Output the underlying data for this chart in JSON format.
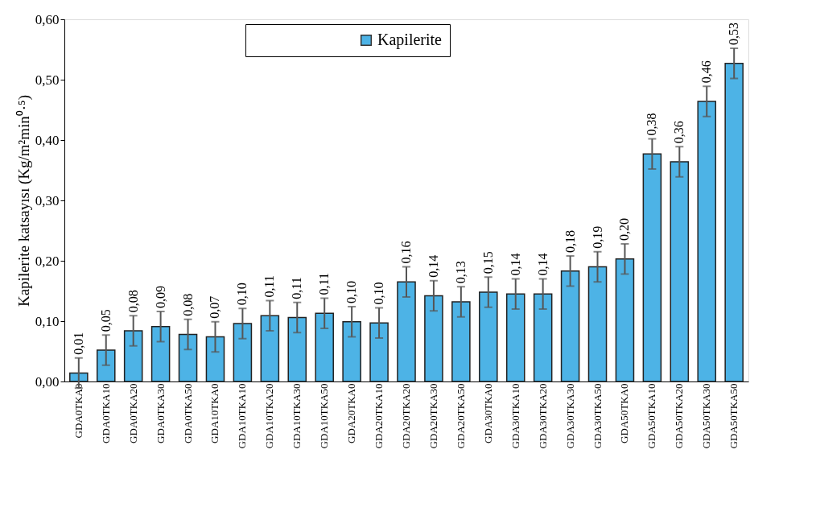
{
  "chart_data": {
    "type": "bar",
    "ylabel": "Kapilerite katsayısı (Kg/m²min⁰·⁵)",
    "categories": [
      "GDA0TKA0",
      "GDA0TKA10",
      "GDA0TKA20",
      "GDA0TKA30",
      "GDA0TKA50",
      "GDA10TKA0",
      "GDA10TKA10",
      "GDA10TKA20",
      "GDA10TKA30",
      "GDA10TKA50",
      "GDA20TKA0",
      "GDA20TKA10",
      "GDA20TKA20",
      "GDA20TKA30",
      "GDA20TKA50",
      "GDA30TKA0",
      "GDA30TKA10",
      "GDA30TKA20",
      "GDA30TKA30",
      "GDA30TKA50",
      "GDA50TKA0",
      "GDA50TKA10",
      "GDA50TKA20",
      "GDA50TKA30",
      "GDA50TKA50"
    ],
    "series": [
      {
        "name": "Kapilerite",
        "color": "#4db3e6",
        "values": [
          0.014,
          0.052,
          0.084,
          0.091,
          0.078,
          0.074,
          0.096,
          0.109,
          0.106,
          0.113,
          0.099,
          0.097,
          0.165,
          0.142,
          0.132,
          0.148,
          0.145,
          0.145,
          0.183,
          0.19,
          0.203,
          0.377,
          0.364,
          0.464,
          0.527
        ],
        "errors": [
          0.025,
          0.025,
          0.025,
          0.025,
          0.025,
          0.025,
          0.025,
          0.025,
          0.025,
          0.025,
          0.025,
          0.025,
          0.025,
          0.025,
          0.025,
          0.025,
          0.025,
          0.025,
          0.025,
          0.025,
          0.025,
          0.025,
          0.025,
          0.025,
          0.025
        ],
        "value_labels": [
          "0,01",
          "0,05",
          "0,08",
          "0,09",
          "0,08",
          "0,07",
          "0,10",
          "0,11",
          "0,11",
          "0,11",
          "0,10",
          "0,10",
          "0,16",
          "0,14",
          "0,13",
          "0,15",
          "0,14",
          "0,14",
          "0,18",
          "0,19",
          "0,20",
          "0,38",
          "0,36",
          "0,46",
          "0,53"
        ]
      }
    ],
    "ylim": [
      0,
      0.6
    ],
    "yticks": [
      {
        "value": 0,
        "label": "0,00"
      },
      {
        "value": 0.1,
        "label": "0,10"
      },
      {
        "value": 0.2,
        "label": "0,20"
      },
      {
        "value": 0.3,
        "label": "0,30"
      },
      {
        "value": 0.4,
        "label": "0,40"
      },
      {
        "value": 0.5,
        "label": "0,50"
      },
      {
        "value": 0.6,
        "label": "0,60"
      }
    ],
    "legend": "top",
    "grid": false
  }
}
